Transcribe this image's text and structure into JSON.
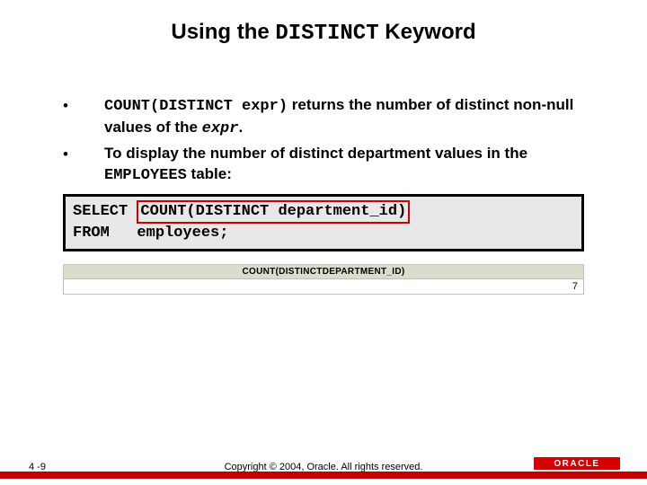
{
  "title": {
    "prefix": "Using the ",
    "keyword": "DISTINCT",
    "suffix": " Keyword"
  },
  "bullets": [
    {
      "parts": {
        "code1": "COUNT(DISTINCT expr)",
        "t1": " returns the number of distinct non-null values of the ",
        "code2": "expr",
        "t2": "."
      }
    },
    {
      "parts": {
        "t1": "To display the number of distinct department values in the ",
        "code1": "EMPLOYEES",
        "t2": " table:"
      }
    }
  ],
  "code": {
    "line1_kw": "SELECT ",
    "line1_hl": "COUNT(DISTINCT department_id)",
    "line2": "FROM   employees;"
  },
  "result": {
    "header": "COUNT(DISTINCTDEPARTMENT_ID)",
    "value": "7"
  },
  "footer": {
    "page": "4 -9",
    "copyright": "Copyright © 2004, Oracle.  All rights reserved.",
    "logo": "ORACLE"
  },
  "colors": {
    "highlight_border": "#cc0000",
    "code_bg": "#e8e8e8",
    "strip": "#c00000",
    "logo_bg": "#d40000",
    "result_header_bg": "#dcdccc"
  }
}
